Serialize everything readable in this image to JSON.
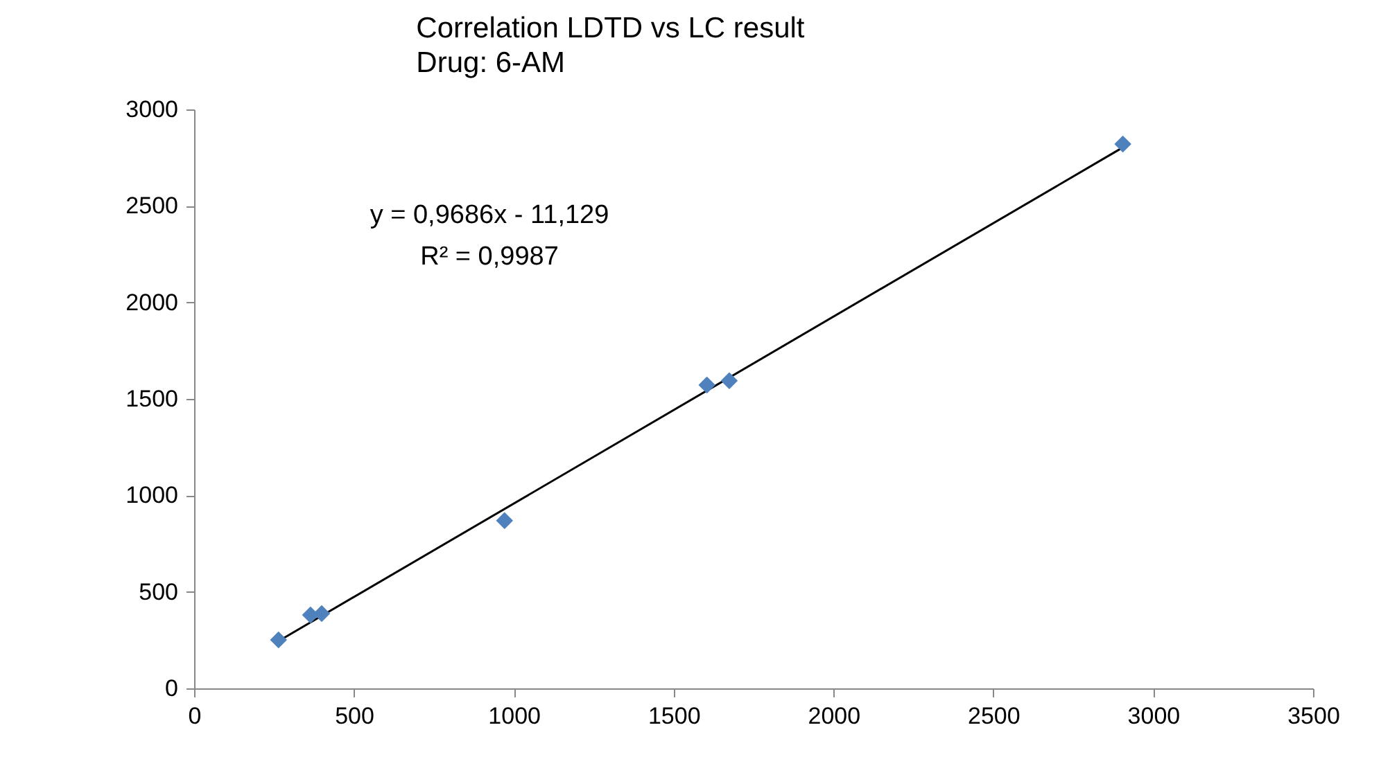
{
  "chart_data": {
    "type": "scatter",
    "title": "Correlation LDTD vs LC result",
    "subtitle": "Drug: 6-AM",
    "annotations": [
      "y = 0,9686x - 11,129",
      "R² = 0,9987"
    ],
    "x": [
      264,
      364,
      399,
      971,
      1604,
      1674,
      2905
    ],
    "series": [
      {
        "color": "#4f81bd",
        "marker": "diamond",
        "values": [
          251,
          380,
          388,
          869,
          1572,
          1594,
          2821
        ]
      },
      {
        "type": "line",
        "color": "#000000",
        "marker": "none",
        "x": [
          264,
          2905
        ],
        "values": [
          245,
          2803
        ]
      }
    ],
    "xlim": [
      0,
      3500
    ],
    "xticks": [
      0,
      500,
      1000,
      1500,
      2000,
      2500,
      3000,
      3500
    ],
    "ylim": [
      0,
      3000
    ],
    "yticks": [
      0,
      500,
      1000,
      1500,
      2000,
      2500,
      3000
    ]
  }
}
